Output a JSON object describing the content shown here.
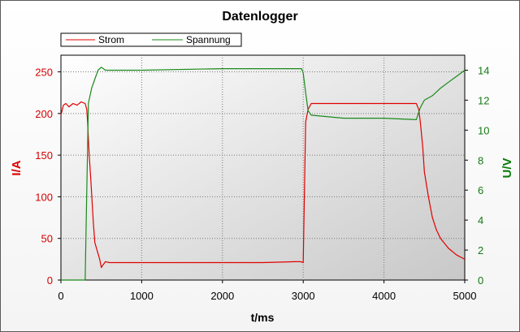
{
  "chart_data": {
    "type": "line",
    "title": "Datenlogger",
    "xlabel": "t/ms",
    "ylabel_left": "I/A",
    "ylabel_right": "U/V",
    "xlim": [
      0,
      5000
    ],
    "ylim_left": [
      0,
      270
    ],
    "ylim_right": [
      0,
      15
    ],
    "x_ticks": [
      0,
      1000,
      2000,
      3000,
      4000,
      5000
    ],
    "y_left_ticks": [
      0,
      50,
      100,
      150,
      200,
      250
    ],
    "y_right_ticks": [
      0,
      2,
      4,
      6,
      8,
      10,
      12,
      14
    ],
    "grid": true,
    "legend_placement": "top-left",
    "colors": {
      "strom": "#e00000",
      "spannung": "#1a8a1a"
    },
    "series": [
      {
        "name": "Strom",
        "axis": "left",
        "x": [
          0,
          30,
          60,
          100,
          150,
          200,
          250,
          300,
          320,
          330,
          340,
          350,
          370,
          400,
          420,
          450,
          480,
          500,
          520,
          550,
          600,
          700,
          1000,
          1500,
          2000,
          2500,
          2900,
          2970,
          3000,
          3030,
          3060,
          3100,
          3200,
          3500,
          4000,
          4400,
          4430,
          4450,
          4480,
          4500,
          4550,
          4600,
          4650,
          4700,
          4800,
          4900,
          5000
        ],
        "y": [
          198,
          210,
          212,
          208,
          212,
          210,
          214,
          212,
          205,
          190,
          170,
          150,
          120,
          70,
          45,
          35,
          25,
          15,
          18,
          22,
          21,
          21,
          21,
          21,
          21,
          21,
          22,
          22,
          21,
          190,
          205,
          212,
          212,
          212,
          212,
          212,
          205,
          190,
          160,
          130,
          100,
          75,
          60,
          50,
          38,
          30,
          25
        ]
      },
      {
        "name": "Spannung",
        "axis": "right",
        "x": [
          0,
          300,
          340,
          380,
          420,
          460,
          500,
          550,
          600,
          1000,
          2000,
          2900,
          2980,
          3000,
          3030,
          3060,
          3100,
          3500,
          4000,
          4400,
          4450,
          4500,
          4600,
          4700,
          4800,
          4900,
          5000
        ],
        "y": [
          0,
          0,
          11.8,
          12.8,
          13.4,
          14.0,
          14.2,
          14.0,
          14.0,
          14.0,
          14.1,
          14.1,
          14.1,
          13.8,
          12.5,
          11.3,
          11.0,
          10.8,
          10.8,
          10.7,
          11.5,
          12.0,
          12.3,
          12.8,
          13.2,
          13.6,
          14.0
        ]
      }
    ]
  }
}
